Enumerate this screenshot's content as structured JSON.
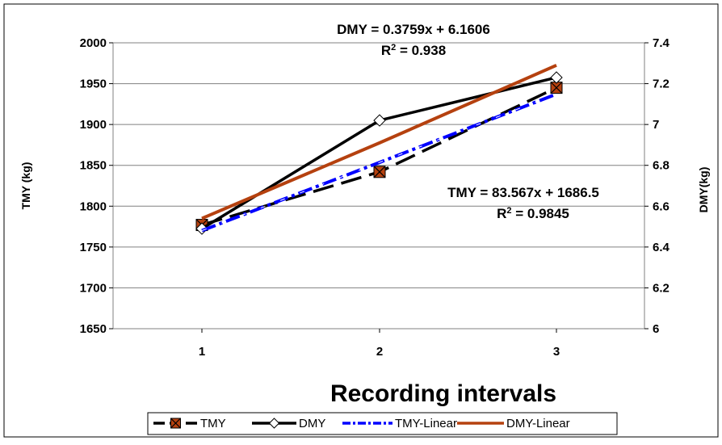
{
  "chart_data": {
    "type": "line",
    "categories": [
      "1",
      "2",
      "3"
    ],
    "x": [
      1,
      2,
      3
    ],
    "xlabel": "Recording intervals",
    "ylabel": "TMY (kg)",
    "y2label": "DMY(kg)",
    "ylim": [
      1650,
      2000
    ],
    "y2lim": [
      6,
      7.4
    ],
    "yticks": [
      "1650",
      "1700",
      "1750",
      "1800",
      "1850",
      "1900",
      "1950",
      "2000"
    ],
    "y2ticks": [
      "6",
      "6.2",
      "6.4",
      "6.6",
      "6.8",
      "7",
      "7.2",
      "7.4"
    ],
    "grid": "horizontal",
    "legend_position": "bottom",
    "series": [
      {
        "name": "TMY",
        "axis": "left",
        "values": [
          1777,
          1842,
          1945
        ],
        "color": "#000000",
        "style": "dashed",
        "marker": "square-x"
      },
      {
        "name": "DMY",
        "axis": "right",
        "values": [
          6.49,
          7.02,
          7.23
        ],
        "color": "#000000",
        "style": "solid",
        "marker": "diamond"
      },
      {
        "name": "TMY-Linear",
        "axis": "left",
        "values": [
          1770.1,
          1853.6,
          1937.2
        ],
        "color": "#0000ff",
        "style": "dash-dot",
        "marker": "none"
      },
      {
        "name": "DMY-Linear",
        "axis": "right",
        "values": [
          6.54,
          6.91,
          7.29
        ],
        "color": "#b5410f",
        "style": "solid",
        "marker": "none"
      }
    ],
    "annotations": [
      {
        "line1": "DMY = 0.3759x + 6.1606",
        "line2_base": "R",
        "line2_sup": "2",
        "line2_rest": " = 0.938"
      },
      {
        "line1": "TMY = 83.567x + 1686.5",
        "line2_base": "R",
        "line2_sup": "2",
        "line2_rest": " = 0.9845"
      }
    ]
  }
}
